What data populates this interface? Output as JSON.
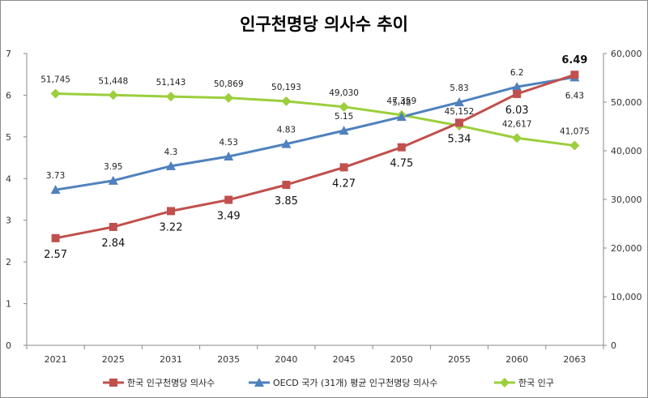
{
  "chart_data": {
    "type": "line",
    "title": "인구천명당 의사수 추이",
    "categories": [
      "2021",
      "2025",
      "2031",
      "2035",
      "2040",
      "2045",
      "2050",
      "2055",
      "2060",
      "2063"
    ],
    "y_left": {
      "min": 0,
      "max": 7,
      "step": 1,
      "ticks": [
        "0",
        "1",
        "2",
        "3",
        "4",
        "5",
        "6",
        "7"
      ]
    },
    "y_right": {
      "min": 0,
      "max": 60000,
      "step": 10000,
      "ticks": [
        "0",
        "10,000",
        "20,000",
        "30,000",
        "40,000",
        "50,000",
        "60,000"
      ]
    },
    "grid": false,
    "legend_position": "bottom",
    "series": [
      {
        "name": "한국 인구천명당 의사수",
        "axis": "left",
        "color": "#c0504d",
        "marker": "square",
        "values": [
          2.57,
          2.84,
          3.22,
          3.49,
          3.85,
          4.27,
          4.75,
          5.34,
          6.03,
          6.49
        ],
        "labels": [
          "2.57",
          "2.84",
          "3.22",
          "3.49",
          "3.85",
          "4.27",
          "4.75",
          "5.34",
          "6.03",
          "6.49"
        ]
      },
      {
        "name": "OECD 국가 (31개) 평균 인구천명당 의사수",
        "axis": "left",
        "color": "#4f81bd",
        "marker": "triangle",
        "values": [
          3.73,
          3.95,
          4.3,
          4.53,
          4.83,
          5.15,
          5.48,
          5.83,
          6.2,
          6.43
        ],
        "labels": [
          "3.73",
          "3.95",
          "4.3",
          "4.53",
          "4.83",
          "5.15",
          "5.48",
          "5.83",
          "6.2",
          "6.43"
        ]
      },
      {
        "name": "한국 인구",
        "axis": "right",
        "color": "#9bcf3c",
        "marker": "diamond",
        "values": [
          51745,
          51448,
          51143,
          50869,
          50193,
          49030,
          47359,
          45152,
          42617,
          41075
        ],
        "labels": [
          "51,745",
          "51,448",
          "51,143",
          "50,869",
          "50,193",
          "49,030",
          "47,359",
          "45,152",
          "42,617",
          "41,075"
        ]
      }
    ]
  }
}
